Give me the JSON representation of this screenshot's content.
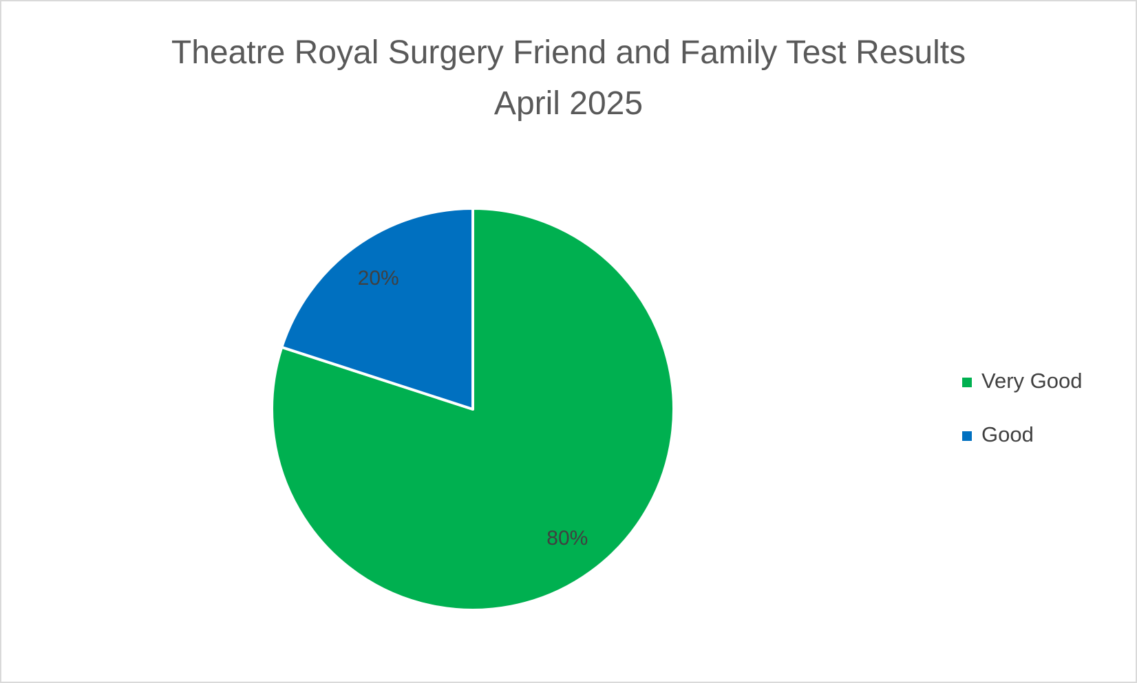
{
  "chart_data": {
    "type": "pie",
    "title": "Theatre Royal Surgery Friend and Family Test Results April 2025",
    "categories": [
      "Very Good",
      "Good"
    ],
    "values": [
      80,
      20
    ],
    "value_labels": [
      "80%",
      "20%"
    ],
    "colors": [
      "#00b050",
      "#0070c0"
    ],
    "legend": "right"
  }
}
